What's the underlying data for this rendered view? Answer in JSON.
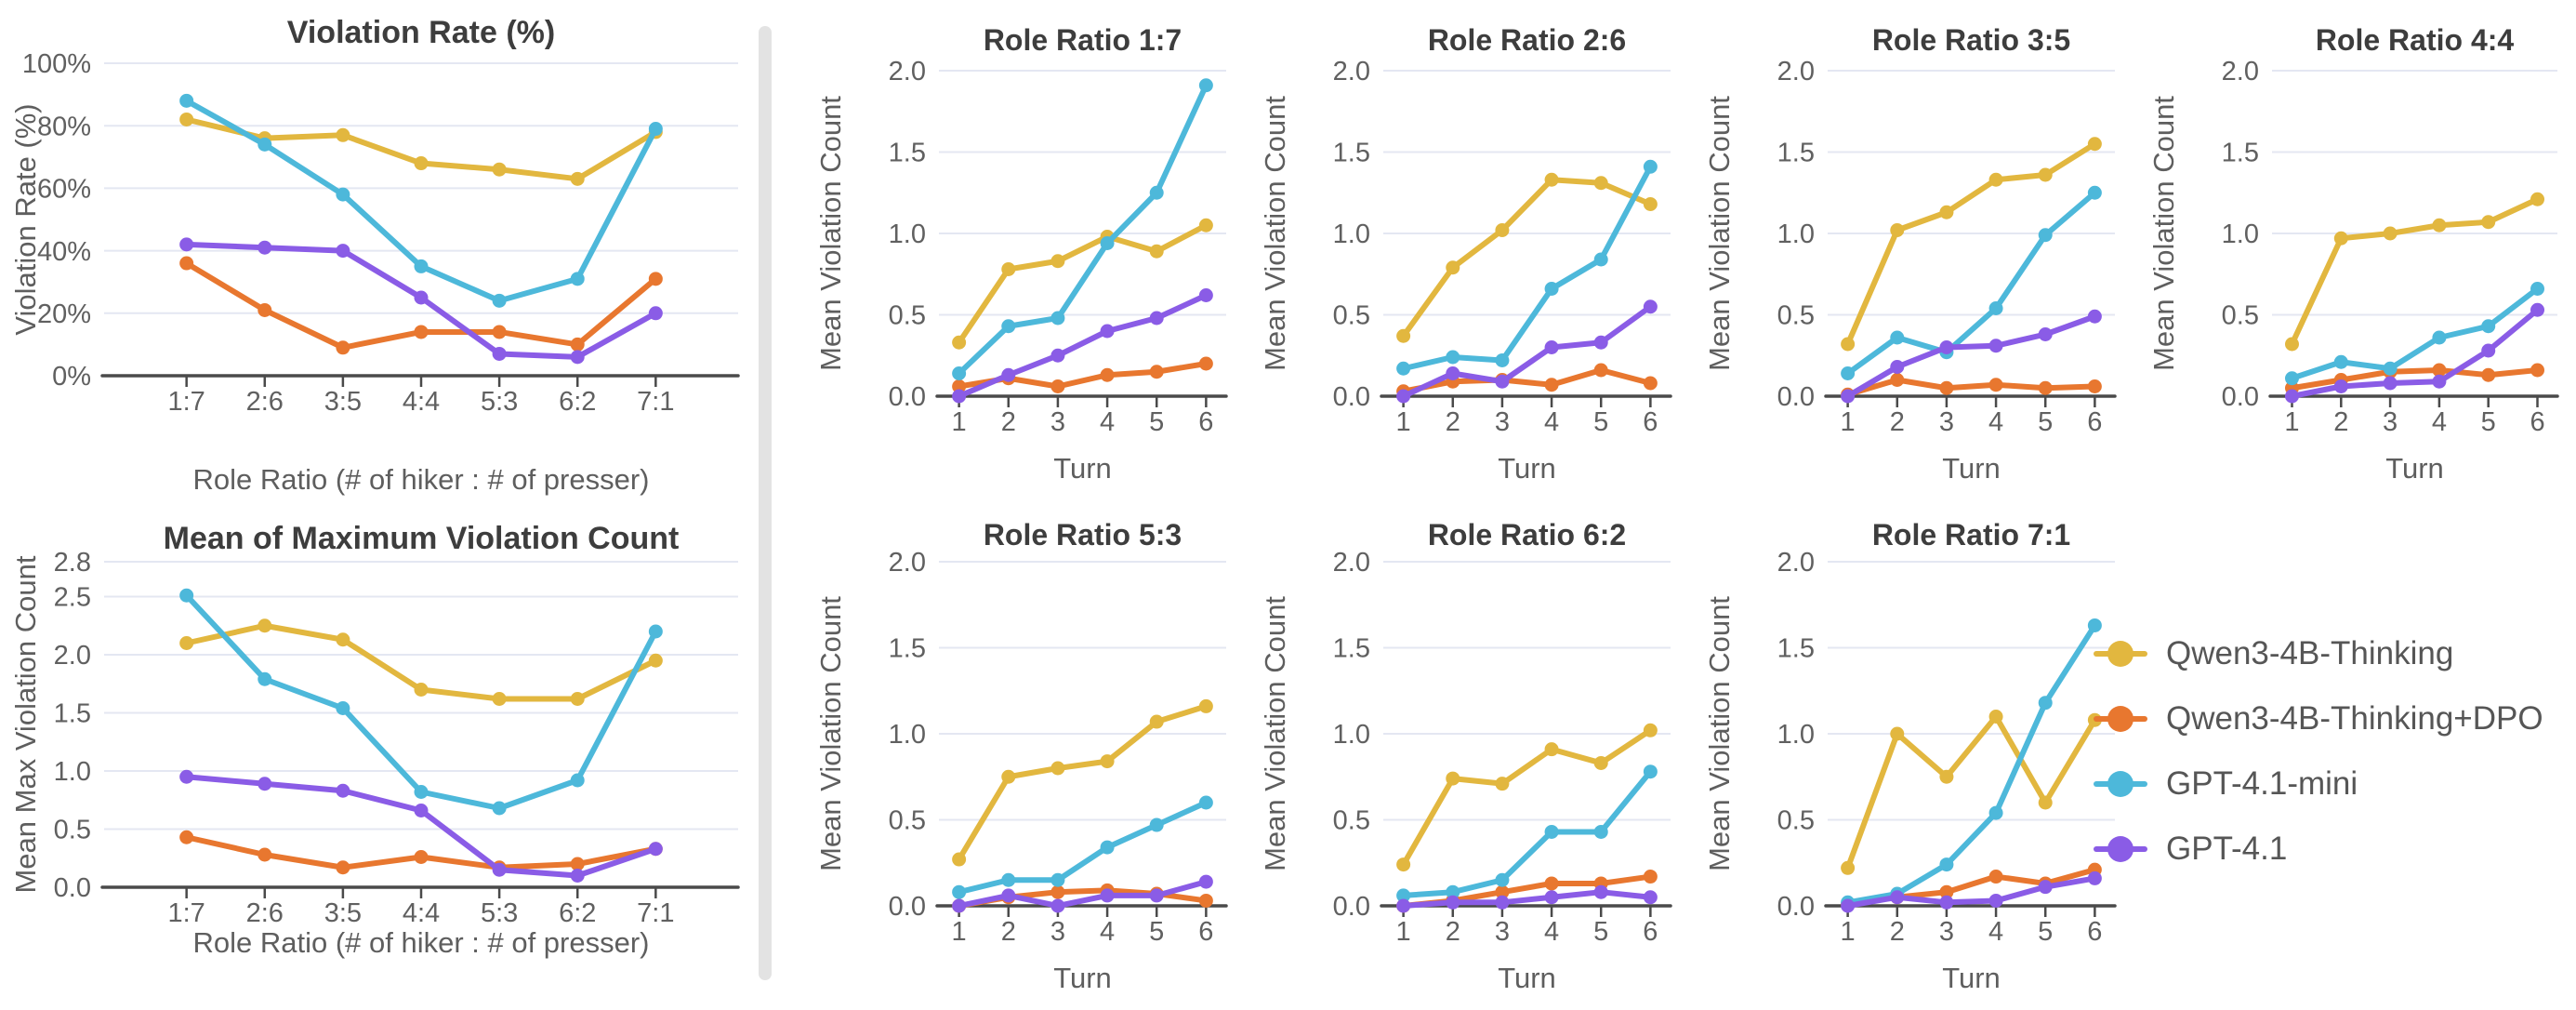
{
  "figure": {
    "background": "#ffffff",
    "divider_color": "#E3E3E3"
  },
  "palette": {
    "grid": "#E4E7F2",
    "axis": "#4A4A4A",
    "tick_text": "#606060",
    "title_text": "#3D3D3D",
    "label_text": "#5E5E5E",
    "legend_text": "#565656"
  },
  "legend": {
    "items": [
      {
        "label": "Qwen3-4B-Thinking",
        "color": "#E2B73F"
      },
      {
        "label": "Qwen3-4B-Thinking+DPO",
        "color": "#E8772F"
      },
      {
        "label": "GPT-4.1-mini",
        "color": "#4DB8DA"
      },
      {
        "label": "GPT-4.1",
        "color": "#8A5CE6"
      }
    ]
  },
  "chart_data": [
    {
      "id": "violation-rate",
      "type": "line",
      "title": "Violation Rate (%)",
      "xlabel": "Role Ratio (# of hiker : # of presser)",
      "ylabel": "Violation Rate (%)",
      "categories": [
        "1:7",
        "2:6",
        "3:5",
        "4:4",
        "5:3",
        "6:2",
        "7:1"
      ],
      "ylim": [
        0,
        100
      ],
      "ytick_values": [
        0,
        20,
        40,
        60,
        80,
        100
      ],
      "ytick_labels": [
        "0%",
        "20%",
        "40%",
        "60%",
        "80%",
        "100%"
      ],
      "grid": true,
      "legend_position": "none",
      "series": [
        {
          "name": "Qwen3-4B-Thinking",
          "values": [
            82,
            76,
            77,
            68,
            66,
            63,
            78
          ]
        },
        {
          "name": "Qwen3-4B-Thinking+DPO",
          "values": [
            36,
            21,
            9,
            14,
            14,
            10,
            31
          ]
        },
        {
          "name": "GPT-4.1-mini",
          "values": [
            88,
            74,
            58,
            35,
            24,
            31,
            79
          ]
        },
        {
          "name": "GPT-4.1",
          "values": [
            42,
            41,
            40,
            25,
            7,
            6,
            20
          ]
        }
      ]
    },
    {
      "id": "mean-max-violation-count",
      "type": "line",
      "title": "Mean of Maximum Violation Count",
      "xlabel": "Role Ratio (# of hiker : # of presser)",
      "ylabel": "Mean Max Violation Count",
      "categories": [
        "1:7",
        "2:6",
        "3:5",
        "4:4",
        "5:3",
        "6:2",
        "7:1"
      ],
      "ylim": [
        0,
        2.8
      ],
      "ytick_values": [
        0,
        0.5,
        1.0,
        1.5,
        2.0,
        2.5,
        2.8
      ],
      "ytick_labels": [
        "0.0",
        "0.5",
        "1.0",
        "1.5",
        "2.0",
        "2.5",
        "2.8"
      ],
      "grid": true,
      "legend_position": "none",
      "series": [
        {
          "name": "Qwen3-4B-Thinking",
          "values": [
            2.1,
            2.25,
            2.13,
            1.7,
            1.62,
            1.62,
            1.95
          ]
        },
        {
          "name": "Qwen3-4B-Thinking+DPO",
          "values": [
            0.43,
            0.28,
            0.17,
            0.26,
            0.17,
            0.2,
            0.33
          ]
        },
        {
          "name": "GPT-4.1-mini",
          "values": [
            2.51,
            1.79,
            1.54,
            0.82,
            0.68,
            0.92,
            2.2
          ]
        },
        {
          "name": "GPT-4.1",
          "values": [
            0.95,
            0.89,
            0.83,
            0.66,
            0.15,
            0.1,
            0.33
          ]
        }
      ]
    },
    {
      "id": "role-ratio-1-7",
      "type": "line",
      "title": "Role Ratio 1:7",
      "xlabel": "Turn",
      "ylabel": "Mean Violation Count",
      "categories": [
        "1",
        "2",
        "3",
        "4",
        "5",
        "6"
      ],
      "ylim": [
        0,
        2.0
      ],
      "ytick_values": [
        0,
        0.5,
        1.0,
        1.5,
        2.0
      ],
      "ytick_labels": [
        "0.0",
        "0.5",
        "1.0",
        "1.5",
        "2.0"
      ],
      "grid": true,
      "legend_position": "none",
      "series": [
        {
          "name": "Qwen3-4B-Thinking",
          "values": [
            0.33,
            0.78,
            0.83,
            0.98,
            0.89,
            1.05
          ]
        },
        {
          "name": "Qwen3-4B-Thinking+DPO",
          "values": [
            0.06,
            0.11,
            0.06,
            0.13,
            0.15,
            0.2
          ]
        },
        {
          "name": "GPT-4.1-mini",
          "values": [
            0.14,
            0.43,
            0.48,
            0.94,
            1.25,
            1.91
          ]
        },
        {
          "name": "GPT-4.1",
          "values": [
            0.0,
            0.13,
            0.25,
            0.4,
            0.48,
            0.62
          ]
        }
      ]
    },
    {
      "id": "role-ratio-2-6",
      "type": "line",
      "title": "Role Ratio 2:6",
      "xlabel": "Turn",
      "ylabel": "Mean Violation Count",
      "categories": [
        "1",
        "2",
        "3",
        "4",
        "5",
        "6"
      ],
      "ylim": [
        0,
        2.0
      ],
      "ytick_values": [
        0,
        0.5,
        1.0,
        1.5,
        2.0
      ],
      "ytick_labels": [
        "0.0",
        "0.5",
        "1.0",
        "1.5",
        "2.0"
      ],
      "grid": true,
      "legend_position": "none",
      "series": [
        {
          "name": "Qwen3-4B-Thinking",
          "values": [
            0.37,
            0.79,
            1.02,
            1.33,
            1.31,
            1.18
          ]
        },
        {
          "name": "Qwen3-4B-Thinking+DPO",
          "values": [
            0.03,
            0.09,
            0.1,
            0.07,
            0.16,
            0.08
          ]
        },
        {
          "name": "GPT-4.1-mini",
          "values": [
            0.17,
            0.24,
            0.22,
            0.66,
            0.84,
            1.41
          ]
        },
        {
          "name": "GPT-4.1",
          "values": [
            0.0,
            0.14,
            0.09,
            0.3,
            0.33,
            0.55
          ]
        }
      ]
    },
    {
      "id": "role-ratio-3-5",
      "type": "line",
      "title": "Role Ratio 3:5",
      "xlabel": "Turn",
      "ylabel": "Mean Violation Count",
      "categories": [
        "1",
        "2",
        "3",
        "4",
        "5",
        "6"
      ],
      "ylim": [
        0,
        2.0
      ],
      "ytick_values": [
        0,
        0.5,
        1.0,
        1.5,
        2.0
      ],
      "ytick_labels": [
        "0.0",
        "0.5",
        "1.0",
        "1.5",
        "2.0"
      ],
      "grid": true,
      "legend_position": "none",
      "series": [
        {
          "name": "Qwen3-4B-Thinking",
          "values": [
            0.32,
            1.02,
            1.13,
            1.33,
            1.36,
            1.55
          ]
        },
        {
          "name": "Qwen3-4B-Thinking+DPO",
          "values": [
            0.01,
            0.1,
            0.05,
            0.07,
            0.05,
            0.06
          ]
        },
        {
          "name": "GPT-4.1-mini",
          "values": [
            0.14,
            0.36,
            0.27,
            0.54,
            0.99,
            1.25
          ]
        },
        {
          "name": "GPT-4.1",
          "values": [
            0.0,
            0.18,
            0.3,
            0.31,
            0.38,
            0.49
          ]
        }
      ]
    },
    {
      "id": "role-ratio-4-4",
      "type": "line",
      "title": "Role Ratio 4:4",
      "xlabel": "Turn",
      "ylabel": "Mean Violation Count",
      "categories": [
        "1",
        "2",
        "3",
        "4",
        "5",
        "6"
      ],
      "ylim": [
        0,
        2.0
      ],
      "ytick_values": [
        0,
        0.5,
        1.0,
        1.5,
        2.0
      ],
      "ytick_labels": [
        "0.0",
        "0.5",
        "1.0",
        "1.5",
        "2.0"
      ],
      "grid": true,
      "legend_position": "none",
      "series": [
        {
          "name": "Qwen3-4B-Thinking",
          "values": [
            0.32,
            0.97,
            1.0,
            1.05,
            1.07,
            1.21
          ]
        },
        {
          "name": "Qwen3-4B-Thinking+DPO",
          "values": [
            0.05,
            0.1,
            0.15,
            0.16,
            0.13,
            0.16
          ]
        },
        {
          "name": "GPT-4.1-mini",
          "values": [
            0.11,
            0.21,
            0.17,
            0.36,
            0.43,
            0.66
          ]
        },
        {
          "name": "GPT-4.1",
          "values": [
            0.0,
            0.06,
            0.08,
            0.09,
            0.28,
            0.53
          ]
        }
      ]
    },
    {
      "id": "role-ratio-5-3",
      "type": "line",
      "title": "Role Ratio 5:3",
      "xlabel": "Turn",
      "ylabel": "Mean Violation Count",
      "categories": [
        "1",
        "2",
        "3",
        "4",
        "5",
        "6"
      ],
      "ylim": [
        0,
        2.0
      ],
      "ytick_values": [
        0,
        0.5,
        1.0,
        1.5,
        2.0
      ],
      "ytick_labels": [
        "0.0",
        "0.5",
        "1.0",
        "1.5",
        "2.0"
      ],
      "grid": true,
      "legend_position": "none",
      "series": [
        {
          "name": "Qwen3-4B-Thinking",
          "values": [
            0.27,
            0.75,
            0.8,
            0.84,
            1.07,
            1.16
          ]
        },
        {
          "name": "Qwen3-4B-Thinking+DPO",
          "values": [
            0.0,
            0.05,
            0.08,
            0.09,
            0.07,
            0.03
          ]
        },
        {
          "name": "GPT-4.1-mini",
          "values": [
            0.08,
            0.15,
            0.15,
            0.34,
            0.47,
            0.6
          ]
        },
        {
          "name": "GPT-4.1",
          "values": [
            0.0,
            0.06,
            0.0,
            0.06,
            0.06,
            0.14
          ]
        }
      ]
    },
    {
      "id": "role-ratio-6-2",
      "type": "line",
      "title": "Role Ratio 6:2",
      "xlabel": "Turn",
      "ylabel": "Mean Violation Count",
      "categories": [
        "1",
        "2",
        "3",
        "4",
        "5",
        "6"
      ],
      "ylim": [
        0,
        2.0
      ],
      "ytick_values": [
        0,
        0.5,
        1.0,
        1.5,
        2.0
      ],
      "ytick_labels": [
        "0.0",
        "0.5",
        "1.0",
        "1.5",
        "2.0"
      ],
      "grid": true,
      "legend_position": "none",
      "series": [
        {
          "name": "Qwen3-4B-Thinking",
          "values": [
            0.24,
            0.74,
            0.71,
            0.91,
            0.83,
            1.02
          ]
        },
        {
          "name": "Qwen3-4B-Thinking+DPO",
          "values": [
            0.0,
            0.03,
            0.08,
            0.13,
            0.13,
            0.17
          ]
        },
        {
          "name": "GPT-4.1-mini",
          "values": [
            0.06,
            0.08,
            0.15,
            0.43,
            0.43,
            0.78
          ]
        },
        {
          "name": "GPT-4.1",
          "values": [
            0.0,
            0.02,
            0.02,
            0.05,
            0.08,
            0.05
          ]
        }
      ]
    },
    {
      "id": "role-ratio-7-1",
      "type": "line",
      "title": "Role Ratio 7:1",
      "xlabel": "Turn",
      "ylabel": "Mean Violation Count",
      "categories": [
        "1",
        "2",
        "3",
        "4",
        "5",
        "6"
      ],
      "ylim": [
        0,
        2.0
      ],
      "ytick_values": [
        0,
        0.5,
        1.0,
        1.5,
        2.0
      ],
      "ytick_labels": [
        "0.0",
        "0.5",
        "1.0",
        "1.5",
        "2.0"
      ],
      "grid": true,
      "legend_position": "right-of-plot",
      "series": [
        {
          "name": "Qwen3-4B-Thinking",
          "values": [
            0.22,
            1.0,
            0.75,
            1.1,
            0.6,
            1.08
          ]
        },
        {
          "name": "Qwen3-4B-Thinking+DPO",
          "values": [
            0.01,
            0.05,
            0.08,
            0.17,
            0.13,
            0.21
          ]
        },
        {
          "name": "GPT-4.1-mini",
          "values": [
            0.02,
            0.07,
            0.24,
            0.54,
            1.18,
            1.63
          ]
        },
        {
          "name": "GPT-4.1",
          "values": [
            0.0,
            0.05,
            0.02,
            0.03,
            0.11,
            0.16
          ]
        }
      ]
    }
  ]
}
